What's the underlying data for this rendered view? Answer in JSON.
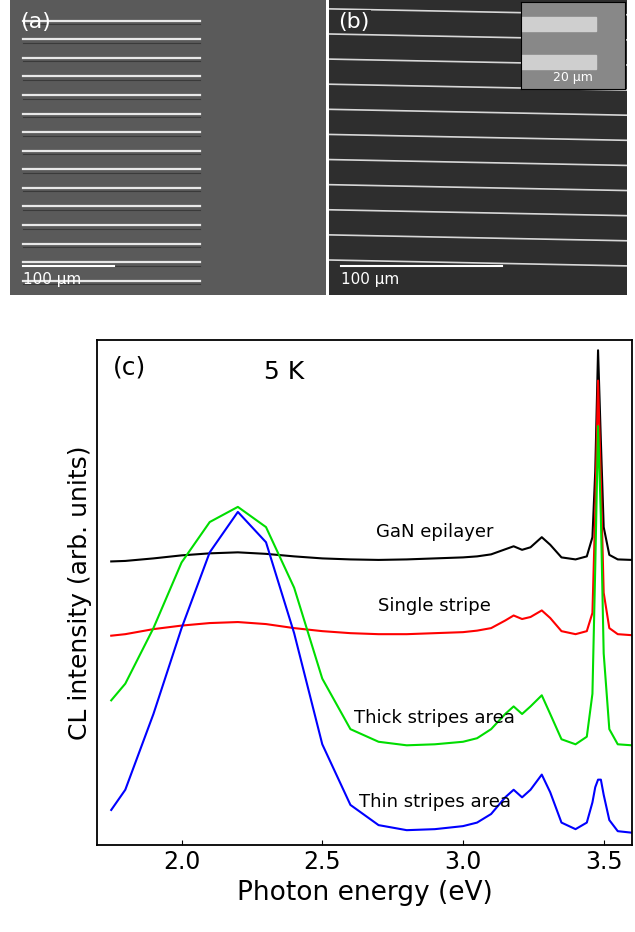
{
  "chart_data": {
    "type": "line",
    "title": "(c)",
    "annotation": "5 K",
    "x_label": "Photon energy (eV)",
    "y_label": "CL intensity (arb. units)",
    "x": [
      1.75,
      1.8,
      1.9,
      2.0,
      2.1,
      2.2,
      2.3,
      2.4,
      2.5,
      2.6,
      2.7,
      2.8,
      2.9,
      3.0,
      3.05,
      3.1,
      3.15,
      3.18,
      3.21,
      3.24,
      3.28,
      3.31,
      3.35,
      3.4,
      3.44,
      3.46,
      3.47,
      3.48,
      3.49,
      3.5,
      3.52,
      3.55,
      3.6
    ],
    "series": [
      {
        "name": "GaN epilayer",
        "color": "#000000",
        "values": [
          5.62,
          5.63,
          5.68,
          5.74,
          5.78,
          5.8,
          5.77,
          5.72,
          5.68,
          5.66,
          5.65,
          5.66,
          5.68,
          5.7,
          5.72,
          5.76,
          5.86,
          5.92,
          5.85,
          5.9,
          6.1,
          5.95,
          5.7,
          5.66,
          5.72,
          6.1,
          7.4,
          9.8,
          8.0,
          6.3,
          5.75,
          5.66,
          5.65
        ]
      },
      {
        "name": "Single stripe",
        "color": "#ff0000",
        "values": [
          4.15,
          4.18,
          4.28,
          4.35,
          4.4,
          4.42,
          4.38,
          4.3,
          4.24,
          4.2,
          4.18,
          4.18,
          4.2,
          4.22,
          4.25,
          4.3,
          4.45,
          4.55,
          4.48,
          4.52,
          4.65,
          4.5,
          4.24,
          4.18,
          4.24,
          4.6,
          6.6,
          9.2,
          7.2,
          5.0,
          4.3,
          4.18,
          4.16
        ]
      },
      {
        "name": "Thick stripes area",
        "color": "#00dd00",
        "values": [
          2.87,
          3.2,
          4.3,
          5.6,
          6.4,
          6.7,
          6.3,
          5.1,
          3.3,
          2.3,
          2.05,
          1.98,
          2.0,
          2.05,
          2.12,
          2.3,
          2.6,
          2.75,
          2.6,
          2.75,
          2.97,
          2.6,
          2.1,
          2.0,
          2.15,
          3.0,
          5.5,
          8.3,
          6.5,
          3.8,
          2.3,
          2.0,
          1.98
        ]
      },
      {
        "name": "Thin stripes area",
        "color": "#0000ff",
        "values": [
          0.7,
          1.1,
          2.6,
          4.3,
          5.8,
          6.6,
          6.0,
          4.2,
          2.0,
          0.8,
          0.4,
          0.3,
          0.32,
          0.38,
          0.45,
          0.62,
          0.95,
          1.1,
          0.95,
          1.1,
          1.4,
          1.05,
          0.45,
          0.32,
          0.45,
          0.85,
          1.15,
          1.3,
          1.3,
          1.0,
          0.5,
          0.28,
          0.25
        ]
      }
    ],
    "xlim": [
      1.7,
      3.6
    ],
    "xticks": [
      2.0,
      2.5,
      3.0,
      3.5
    ],
    "ylim": [
      0,
      10
    ],
    "yticks": [],
    "tick_labels": "x",
    "grid": false
  },
  "sem_images": [
    {
      "label": "(a)",
      "scale_bar": "100 µm"
    },
    {
      "label": "(b)",
      "scale_bar": "100 µm",
      "inset_scale_bar": "20 µm"
    }
  ]
}
